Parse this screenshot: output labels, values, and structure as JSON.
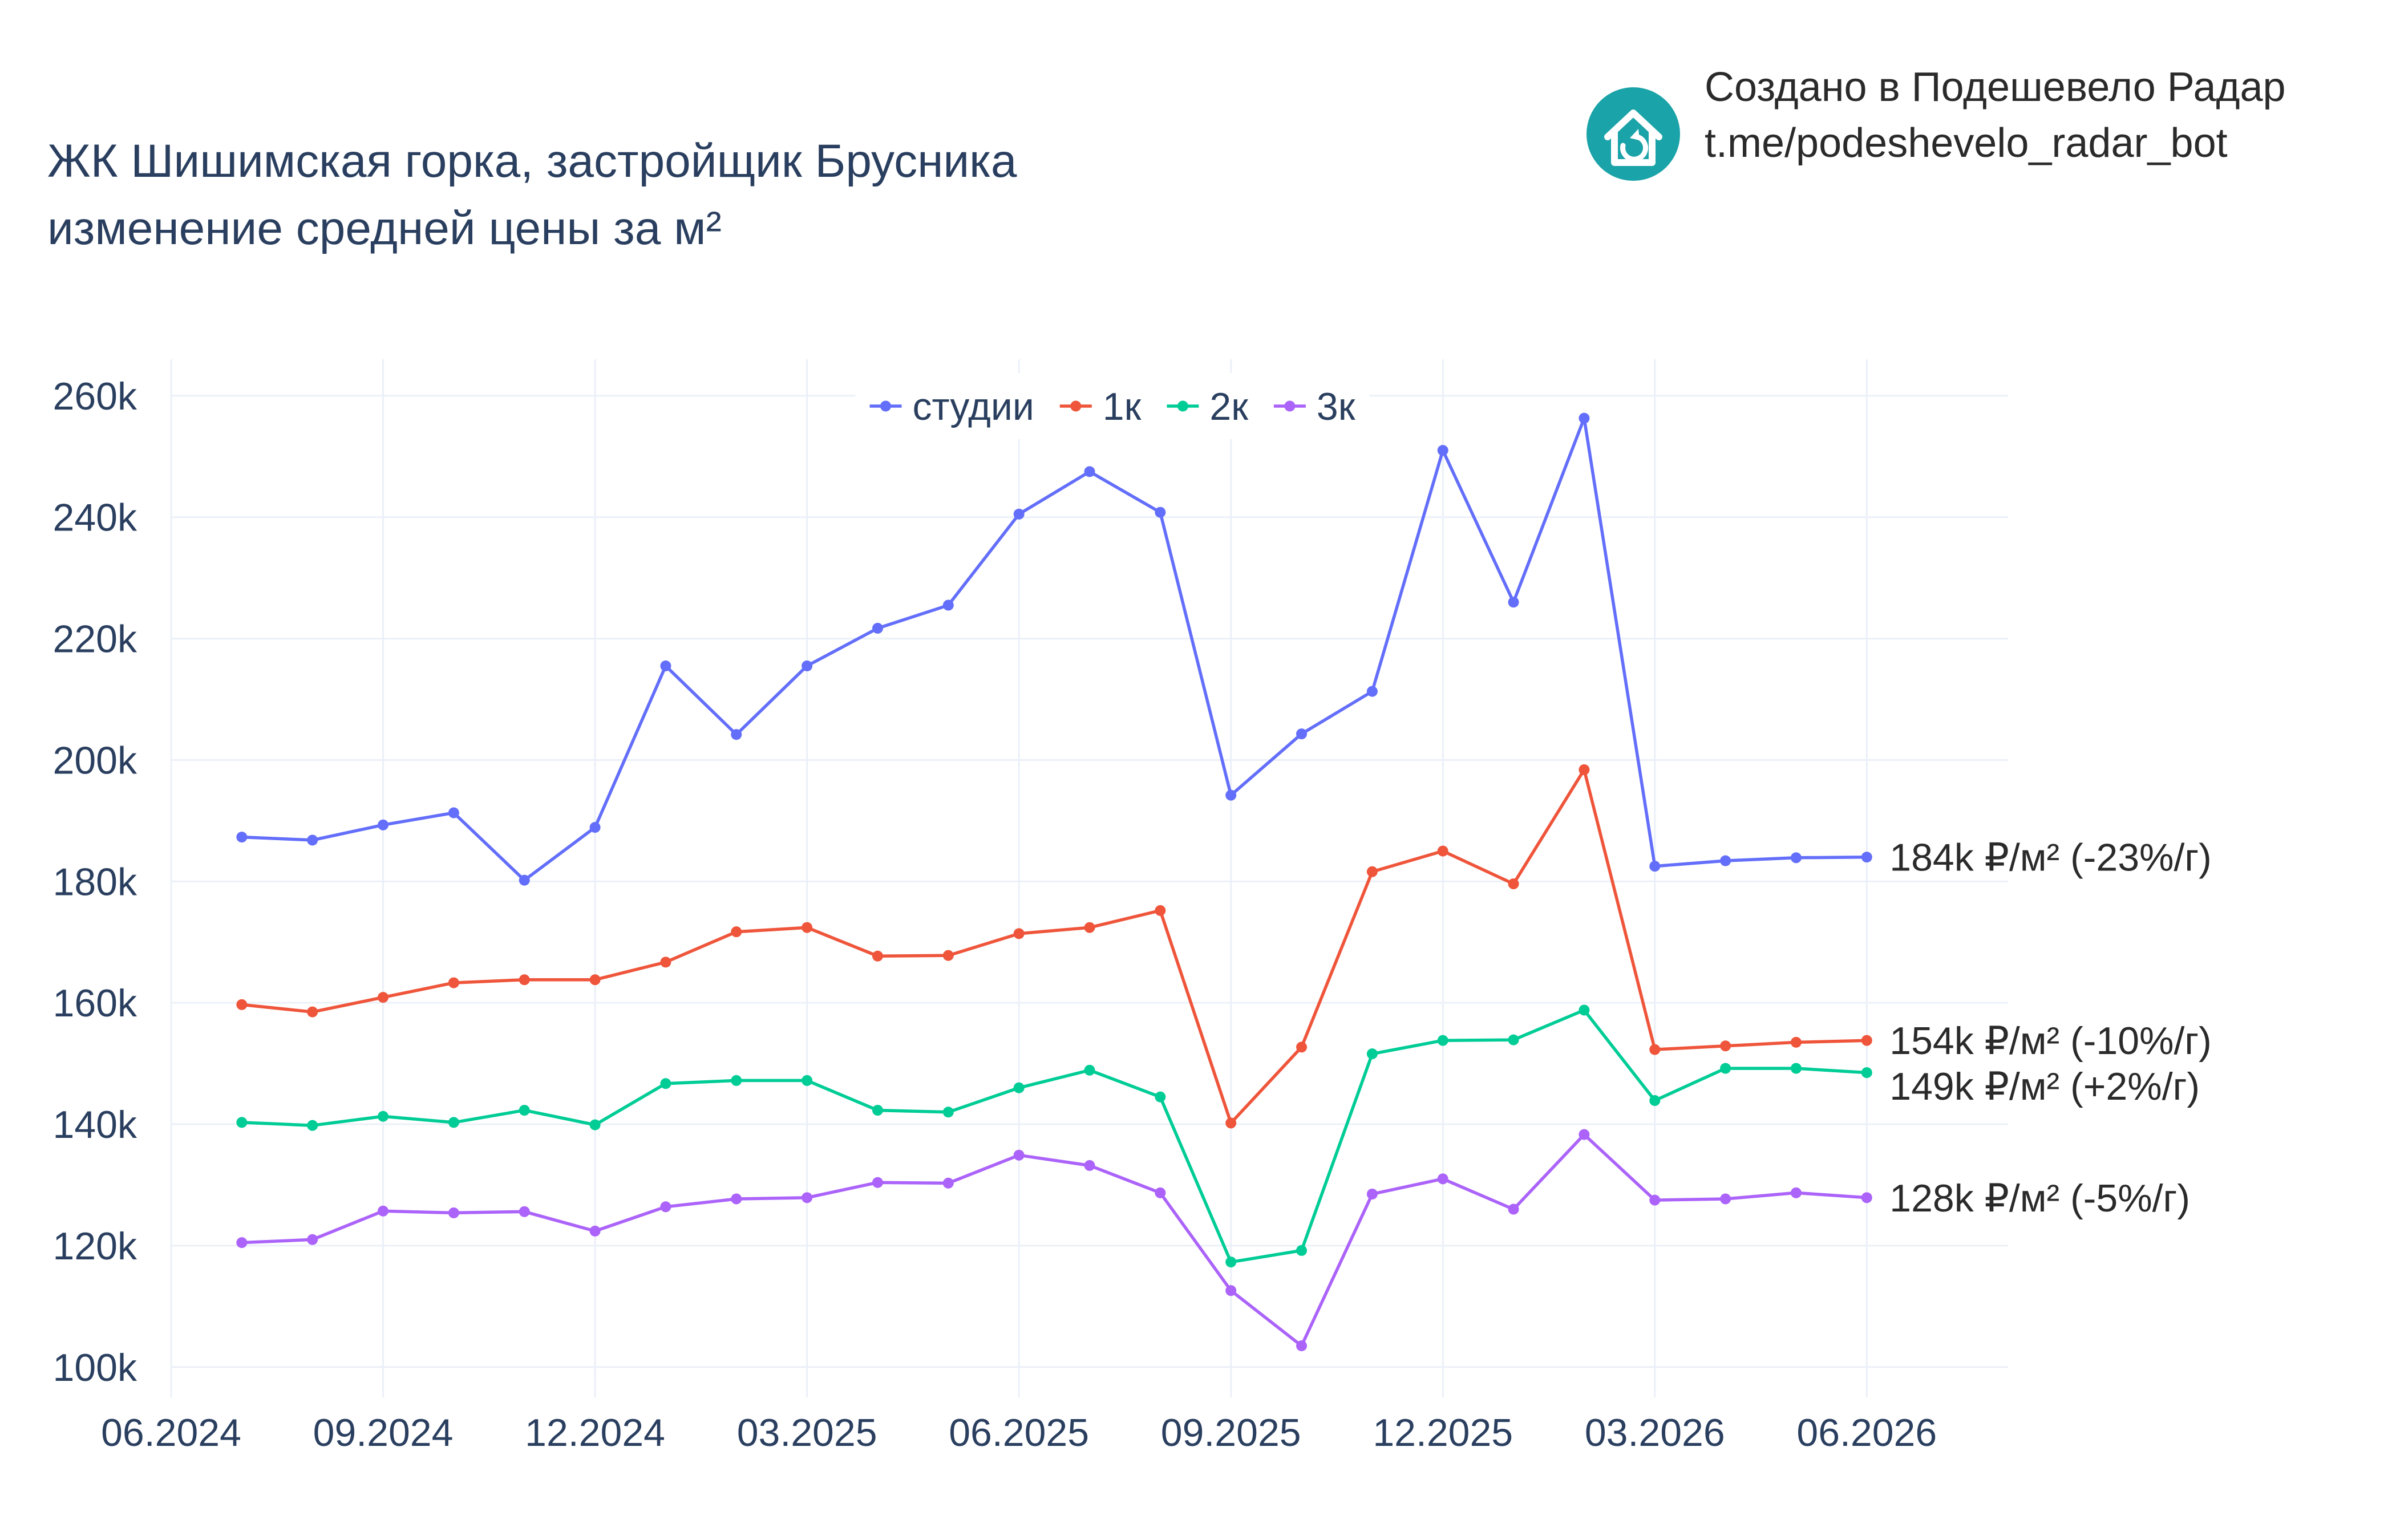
{
  "brand": {
    "line1": "Создано в Подешевело Радар",
    "line2": "t.me/podeshevelo_radar_bot",
    "logo_icon": "house-refresh-icon",
    "logo_color": "#1aa3a8"
  },
  "chart_data": {
    "type": "line",
    "title": "ЖК Шишимская горка, застройщик Брусника",
    "subtitle": "изменение средней цены за м²",
    "xlabel": "",
    "ylabel": "",
    "x": [
      "2024-07",
      "2024-08",
      "2024-09",
      "2024-10",
      "2024-11",
      "2024-12",
      "2025-01",
      "2025-02",
      "2025-03",
      "2025-04",
      "2025-05",
      "2025-06",
      "2025-07",
      "2025-08",
      "2025-09",
      "2025-10",
      "2025-11",
      "2025-12",
      "2026-01",
      "2026-02",
      "2026-03",
      "2026-04",
      "2026-05",
      "2026-06"
    ],
    "x_ticks": [
      "06.2024",
      "09.2024",
      "12.2024",
      "03.2025",
      "06.2025",
      "09.2025",
      "12.2025",
      "03.2026",
      "06.2026"
    ],
    "xlim": [
      "2024-06",
      "2026-08"
    ],
    "y_ticks": [
      100000,
      120000,
      140000,
      160000,
      180000,
      200000,
      220000,
      240000,
      260000
    ],
    "y_tick_labels": [
      "100k",
      "120k",
      "140k",
      "160k",
      "180k",
      "200k",
      "220k",
      "240k",
      "260k"
    ],
    "ylim": [
      95000,
      266000
    ],
    "grid": true,
    "legend_position": "top-center",
    "series": [
      {
        "name": "студии",
        "color": "#636efa",
        "values": [
          187300,
          186800,
          189300,
          191300,
          180200,
          188900,
          215500,
          204200,
          215500,
          221700,
          225500,
          240500,
          247500,
          240800,
          194200,
          204300,
          211300,
          251000,
          226000,
          256300,
          182500,
          183400,
          183900,
          184000
        ],
        "end_label": "184k ₽/м² (-23%/г)"
      },
      {
        "name": "1к",
        "color": "#ef553b",
        "values": [
          159700,
          158500,
          160900,
          163300,
          163800,
          163800,
          166700,
          171700,
          172400,
          167700,
          167800,
          171400,
          172400,
          175200,
          140200,
          152700,
          181600,
          185000,
          179600,
          198400,
          152300,
          152900,
          153500,
          153800
        ],
        "end_label": "154k ₽/м² (-10%/г)"
      },
      {
        "name": "2к",
        "color": "#00cc96",
        "values": [
          140300,
          139800,
          141300,
          140300,
          142300,
          139900,
          146700,
          147200,
          147200,
          142300,
          142000,
          146000,
          148900,
          144500,
          117300,
          119200,
          151600,
          153800,
          153900,
          158800,
          143900,
          149200,
          149200,
          148500
        ],
        "end_label": "149k ₽/м² (+2%/г)"
      },
      {
        "name": "3к",
        "color": "#ab63fa",
        "values": [
          120500,
          121000,
          125700,
          125400,
          125600,
          122400,
          126400,
          127700,
          127900,
          130400,
          130300,
          134900,
          133200,
          128700,
          112600,
          103500,
          128500,
          131000,
          126000,
          138300,
          127500,
          127700,
          128700,
          127900
        ],
        "end_label": "128k ₽/м² (-5%/г)"
      }
    ]
  }
}
